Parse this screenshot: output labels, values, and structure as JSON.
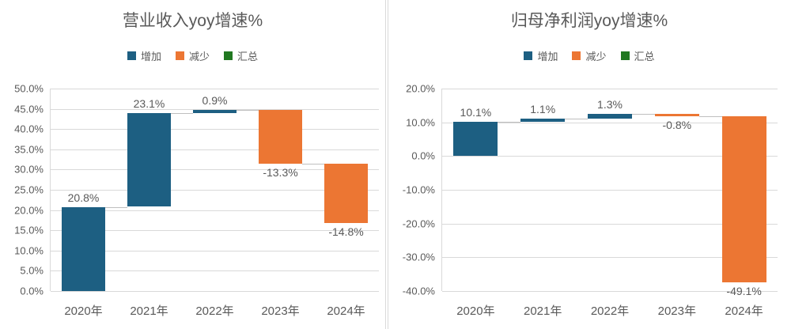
{
  "colors": {
    "increase": "#1d5f82",
    "decrease": "#ec7633",
    "total": "#217821",
    "gridline": "#d9d9d9",
    "connector": "#bfbfbf",
    "text": "#595959",
    "divider": "#d9d9d9",
    "background": "#ffffff"
  },
  "chart_data": [
    {
      "type": "waterfall",
      "title": "营业收入yoy增速%",
      "categories": [
        "2020年",
        "2021年",
        "2022年",
        "2023年",
        "2024年"
      ],
      "values": [
        20.8,
        23.1,
        0.9,
        -13.3,
        -14.8
      ],
      "data_labels": [
        "20.8%",
        "23.1%",
        "0.9%",
        "-13.3%",
        "-14.8%"
      ],
      "cumulative": [
        20.8,
        43.9,
        44.8,
        31.5,
        16.7
      ],
      "legend": [
        {
          "role": "increase",
          "label": "增加",
          "color": "#1d5f82"
        },
        {
          "role": "decrease",
          "label": "减少",
          "color": "#ec7633"
        },
        {
          "role": "total",
          "label": "汇总",
          "color": "#217821"
        }
      ],
      "legend_position": "top",
      "grid": true,
      "ylim": [
        0,
        50
      ],
      "yticks": [
        {
          "value": 50,
          "label": "50.0%"
        },
        {
          "value": 45,
          "label": "45.0%"
        },
        {
          "value": 40,
          "label": "40.0%"
        },
        {
          "value": 35,
          "label": "35.0%"
        },
        {
          "value": 30,
          "label": "30.0%"
        },
        {
          "value": 25,
          "label": "25.0%"
        },
        {
          "value": 20,
          "label": "20.0%"
        },
        {
          "value": 15,
          "label": "15.0%"
        },
        {
          "value": 10,
          "label": "10.0%"
        },
        {
          "value": 5,
          "label": "5.0%"
        },
        {
          "value": 0,
          "label": "0.0%"
        }
      ]
    },
    {
      "type": "waterfall",
      "title": "归母净利润yoy增速%",
      "categories": [
        "2020年",
        "2021年",
        "2022年",
        "2023年",
        "2024年"
      ],
      "values": [
        10.1,
        1.1,
        1.3,
        -0.8,
        -49.1
      ],
      "data_labels": [
        "10.1%",
        "1.1%",
        "1.3%",
        "-0.8%",
        "-49.1%"
      ],
      "cumulative": [
        10.1,
        11.2,
        12.5,
        11.7,
        -37.4
      ],
      "legend": [
        {
          "role": "increase",
          "label": "增加",
          "color": "#1d5f82"
        },
        {
          "role": "decrease",
          "label": "减少",
          "color": "#ec7633"
        },
        {
          "role": "total",
          "label": "汇总",
          "color": "#217821"
        }
      ],
      "legend_position": "top",
      "grid": true,
      "ylim": [
        -40,
        20
      ],
      "yticks": [
        {
          "value": 20,
          "label": "20.0%"
        },
        {
          "value": 10,
          "label": "10.0%"
        },
        {
          "value": 0,
          "label": "0.0%"
        },
        {
          "value": -10,
          "label": "-10.0%"
        },
        {
          "value": -20,
          "label": "-20.0%"
        },
        {
          "value": -30,
          "label": "-30.0%"
        },
        {
          "value": -40,
          "label": "-40.0%"
        }
      ]
    }
  ]
}
